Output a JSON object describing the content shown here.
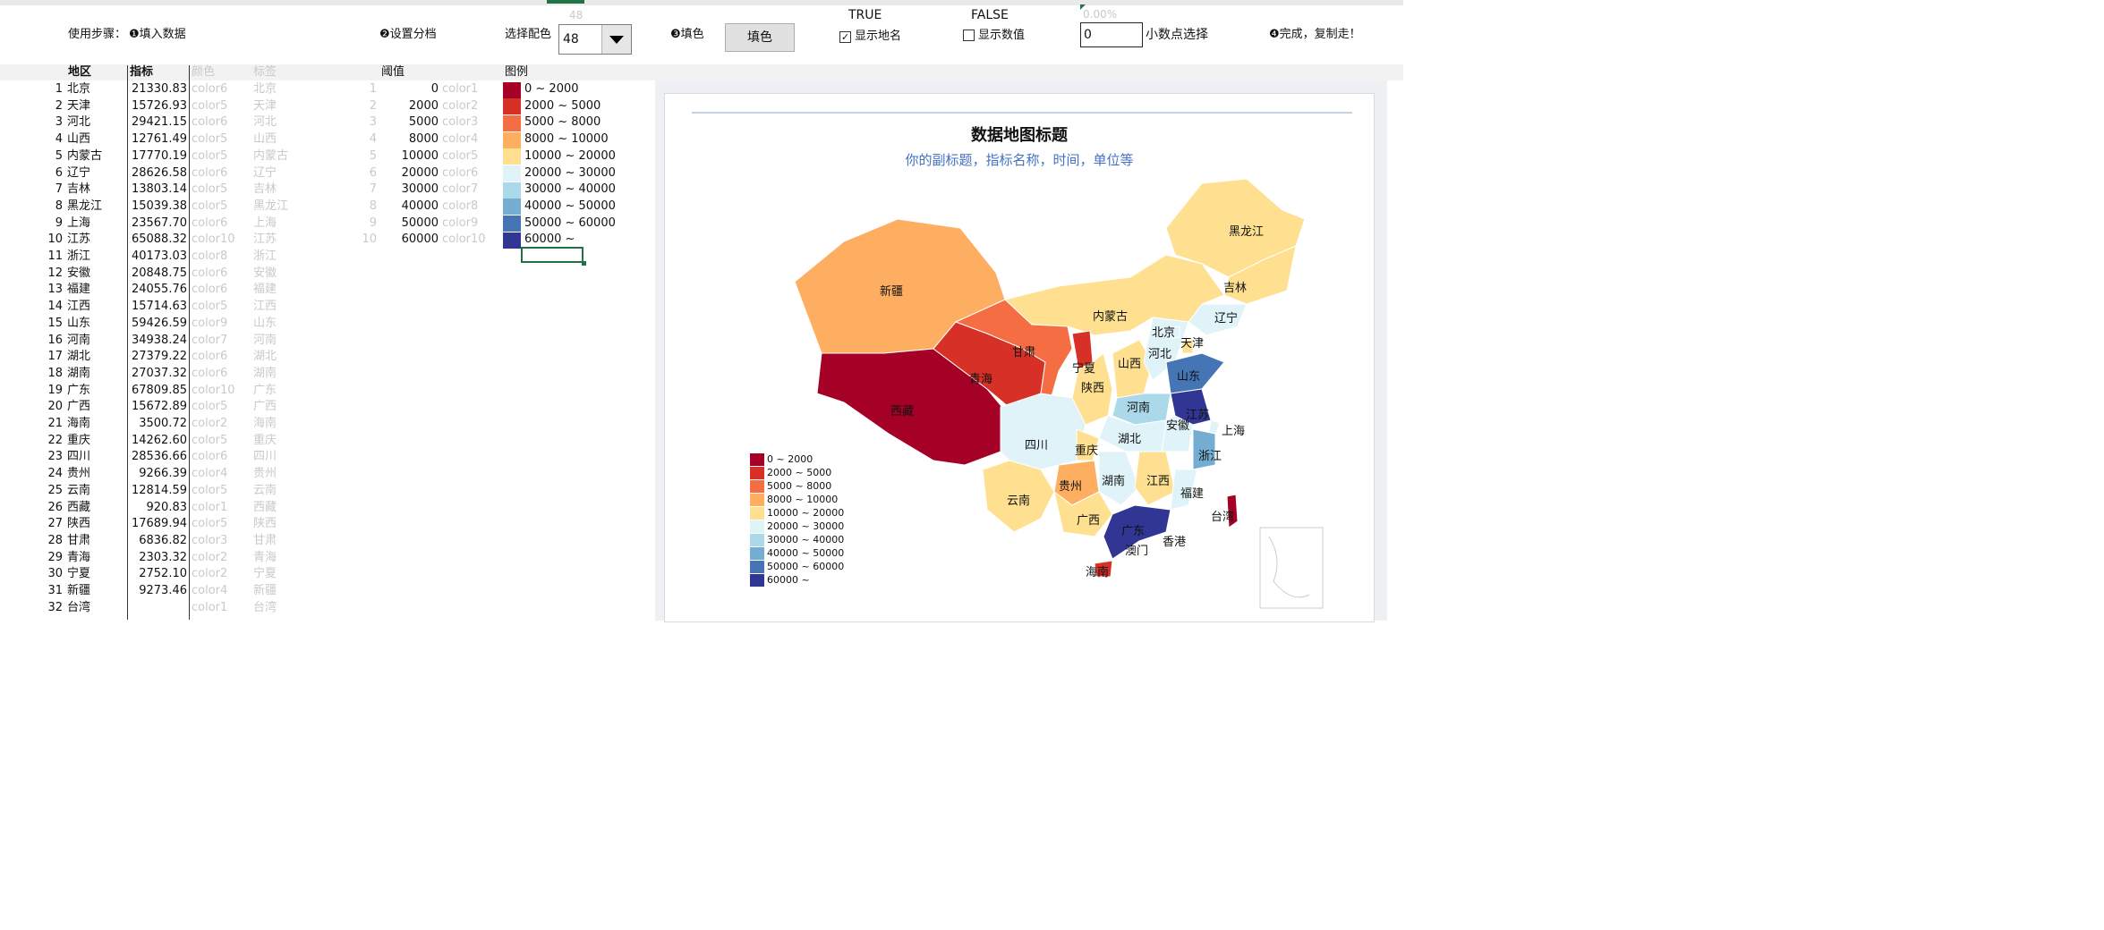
{
  "toolbar": {
    "steps_label": "使用步骤：",
    "step1": "❶填入数据",
    "step2": "❷设置分档",
    "palette_label": "选择配色",
    "palette_value": "48",
    "palette_ghost": "48",
    "step3": "❸填色",
    "fill_button": "填色",
    "true_label": "TRUE",
    "false_label": "FALSE",
    "show_names_label": "显示地名",
    "show_names_checked": true,
    "show_values_label": "显示数值",
    "show_values_checked": false,
    "percent_ghost": "0.00%",
    "decimal_value": "0",
    "decimal_label": "小数点选择",
    "step4": "❹完成，复制走！"
  },
  "headers": {
    "region": "地区",
    "metric": "指标",
    "color": "颜色",
    "label": "标签",
    "threshold": "阈值",
    "legend": "图例"
  },
  "rows": [
    {
      "n": "1",
      "name": "北京",
      "val": "21330.83",
      "color": "color6",
      "label": "北京"
    },
    {
      "n": "2",
      "name": "天津",
      "val": "15726.93",
      "color": "color5",
      "label": "天津"
    },
    {
      "n": "3",
      "name": "河北",
      "val": "29421.15",
      "color": "color6",
      "label": "河北"
    },
    {
      "n": "4",
      "name": "山西",
      "val": "12761.49",
      "color": "color5",
      "label": "山西"
    },
    {
      "n": "5",
      "name": "内蒙古",
      "val": "17770.19",
      "color": "color5",
      "label": "内蒙古"
    },
    {
      "n": "6",
      "name": "辽宁",
      "val": "28626.58",
      "color": "color6",
      "label": "辽宁"
    },
    {
      "n": "7",
      "name": "吉林",
      "val": "13803.14",
      "color": "color5",
      "label": "吉林"
    },
    {
      "n": "8",
      "name": "黑龙江",
      "val": "15039.38",
      "color": "color5",
      "label": "黑龙江"
    },
    {
      "n": "9",
      "name": "上海",
      "val": "23567.70",
      "color": "color6",
      "label": "上海"
    },
    {
      "n": "10",
      "name": "江苏",
      "val": "65088.32",
      "color": "color10",
      "label": "江苏"
    },
    {
      "n": "11",
      "name": "浙江",
      "val": "40173.03",
      "color": "color8",
      "label": "浙江"
    },
    {
      "n": "12",
      "name": "安徽",
      "val": "20848.75",
      "color": "color6",
      "label": "安徽"
    },
    {
      "n": "13",
      "name": "福建",
      "val": "24055.76",
      "color": "color6",
      "label": "福建"
    },
    {
      "n": "14",
      "name": "江西",
      "val": "15714.63",
      "color": "color5",
      "label": "江西"
    },
    {
      "n": "15",
      "name": "山东",
      "val": "59426.59",
      "color": "color9",
      "label": "山东"
    },
    {
      "n": "16",
      "name": "河南",
      "val": "34938.24",
      "color": "color7",
      "label": "河南"
    },
    {
      "n": "17",
      "name": "湖北",
      "val": "27379.22",
      "color": "color6",
      "label": "湖北"
    },
    {
      "n": "18",
      "name": "湖南",
      "val": "27037.32",
      "color": "color6",
      "label": "湖南"
    },
    {
      "n": "19",
      "name": "广东",
      "val": "67809.85",
      "color": "color10",
      "label": "广东"
    },
    {
      "n": "20",
      "name": "广西",
      "val": "15672.89",
      "color": "color5",
      "label": "广西"
    },
    {
      "n": "21",
      "name": "海南",
      "val": "3500.72",
      "color": "color2",
      "label": "海南"
    },
    {
      "n": "22",
      "name": "重庆",
      "val": "14262.60",
      "color": "color5",
      "label": "重庆"
    },
    {
      "n": "23",
      "name": "四川",
      "val": "28536.66",
      "color": "color6",
      "label": "四川"
    },
    {
      "n": "24",
      "name": "贵州",
      "val": "9266.39",
      "color": "color4",
      "label": "贵州"
    },
    {
      "n": "25",
      "name": "云南",
      "val": "12814.59",
      "color": "color5",
      "label": "云南"
    },
    {
      "n": "26",
      "name": "西藏",
      "val": "920.83",
      "color": "color1",
      "label": "西藏"
    },
    {
      "n": "27",
      "name": "陕西",
      "val": "17689.94",
      "color": "color5",
      "label": "陕西"
    },
    {
      "n": "28",
      "name": "甘肃",
      "val": "6836.82",
      "color": "color3",
      "label": "甘肃"
    },
    {
      "n": "29",
      "name": "青海",
      "val": "2303.32",
      "color": "color2",
      "label": "青海"
    },
    {
      "n": "30",
      "name": "宁夏",
      "val": "2752.10",
      "color": "color2",
      "label": "宁夏"
    },
    {
      "n": "31",
      "name": "新疆",
      "val": "9273.46",
      "color": "color4",
      "label": "新疆"
    },
    {
      "n": "32",
      "name": "台湾",
      "val": "",
      "color": "color1",
      "label": "台湾"
    }
  ],
  "thresholds": [
    {
      "n": "1",
      "value": "0",
      "color": "color1",
      "legend": "0 ~ 2000",
      "hex": "#a50026"
    },
    {
      "n": "2",
      "value": "2000",
      "color": "color2",
      "legend": "2000 ~ 5000",
      "hex": "#d73027"
    },
    {
      "n": "3",
      "value": "5000",
      "color": "color3",
      "legend": "5000 ~ 8000",
      "hex": "#f46d43"
    },
    {
      "n": "4",
      "value": "8000",
      "color": "color4",
      "legend": "8000 ~ 10000",
      "hex": "#fdae61"
    },
    {
      "n": "5",
      "value": "10000",
      "color": "color5",
      "legend": "10000 ~ 20000",
      "hex": "#fee090"
    },
    {
      "n": "6",
      "value": "20000",
      "color": "color6",
      "legend": "20000 ~ 30000",
      "hex": "#e0f3f8"
    },
    {
      "n": "7",
      "value": "30000",
      "color": "color7",
      "legend": "30000 ~ 40000",
      "hex": "#abd9e9"
    },
    {
      "n": "8",
      "value": "40000",
      "color": "color8",
      "legend": "40000 ~ 50000",
      "hex": "#74add1"
    },
    {
      "n": "9",
      "value": "50000",
      "color": "color9",
      "legend": "50000 ~ 60000",
      "hex": "#4575b4"
    },
    {
      "n": "10",
      "value": "60000",
      "color": "color10",
      "legend": "60000 ~",
      "hex": "#313695"
    }
  ],
  "map": {
    "title": "数据地图标题",
    "subtitle": "你的副标题，指标名称，时间，单位等",
    "extra_labels": [
      "香港",
      "澳门",
      "台湾"
    ]
  },
  "colors": {
    "selection_green": "#217346",
    "subtitle_blue": "#4472c4"
  }
}
